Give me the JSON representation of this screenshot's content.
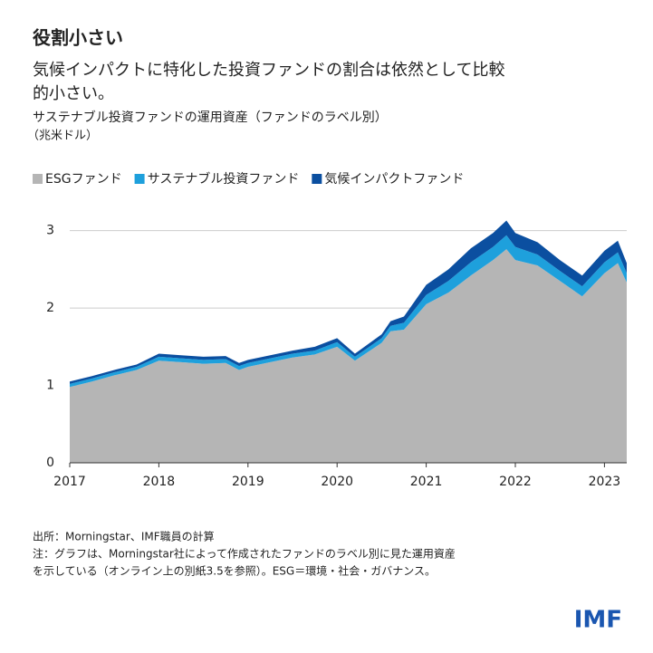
{
  "chart_data": {
    "type": "stacked_area",
    "title": "役割小さい",
    "subtitle": [
      "気候インパクトに特化した投資ファンドの割合は依然として比較",
      "的小さい。"
    ],
    "chart_title": "サステナブル投資ファンドの運用資産（ファンドのラベル別）",
    "unit": "（兆米ドル）",
    "x": [
      2017.0,
      2017.25,
      2017.5,
      2017.75,
      2018.0,
      2018.25,
      2018.5,
      2018.75,
      2018.9,
      2019.0,
      2019.25,
      2019.5,
      2019.75,
      2020.0,
      2020.2,
      2020.5,
      2020.6,
      2020.75,
      2021.0,
      2021.25,
      2021.5,
      2021.75,
      2021.9,
      2022.0,
      2022.25,
      2022.5,
      2022.75,
      2023.0,
      2023.15,
      2023.25
    ],
    "series": [
      {
        "name": "ESGファンド",
        "color": "#b5b5b5",
        "values": [
          0.98,
          1.05,
          1.13,
          1.2,
          1.32,
          1.3,
          1.28,
          1.29,
          1.2,
          1.24,
          1.3,
          1.36,
          1.4,
          1.5,
          1.32,
          1.55,
          1.7,
          1.72,
          2.05,
          2.2,
          2.42,
          2.62,
          2.76,
          2.62,
          2.55,
          2.35,
          2.15,
          2.45,
          2.58,
          2.33
        ]
      },
      {
        "name": "サステナブル投資ファンド",
        "color": "#1ea0dc",
        "values": [
          0.04,
          0.04,
          0.04,
          0.04,
          0.05,
          0.05,
          0.05,
          0.05,
          0.05,
          0.05,
          0.05,
          0.05,
          0.05,
          0.06,
          0.05,
          0.06,
          0.07,
          0.09,
          0.12,
          0.15,
          0.17,
          0.17,
          0.18,
          0.17,
          0.14,
          0.13,
          0.13,
          0.14,
          0.14,
          0.12
        ]
      },
      {
        "name": "気候インパクトファンド",
        "color": "#0b4fa0",
        "values": [
          0.03,
          0.03,
          0.03,
          0.03,
          0.04,
          0.04,
          0.04,
          0.04,
          0.04,
          0.04,
          0.04,
          0.04,
          0.05,
          0.05,
          0.04,
          0.05,
          0.06,
          0.08,
          0.13,
          0.15,
          0.18,
          0.18,
          0.19,
          0.18,
          0.16,
          0.14,
          0.14,
          0.15,
          0.15,
          0.13
        ]
      }
    ],
    "xlim": [
      2017,
      2023.25
    ],
    "xticks": [
      2017,
      2018,
      2019,
      2020,
      2021,
      2022,
      2023
    ],
    "ylim": [
      0,
      3.3
    ],
    "yticks": [
      0,
      1,
      2,
      3
    ],
    "grid": true,
    "source": "出所：Morningstar、IMF職員の計算",
    "note": [
      "注：グラフは、Morningstar社によって作成されたファンドのラベル別に見た運用資産",
      "を示している（オンライン上の別紙3.5を参照）。ESG＝環境・社会・ガバナンス。"
    ],
    "logo": "IMF"
  }
}
